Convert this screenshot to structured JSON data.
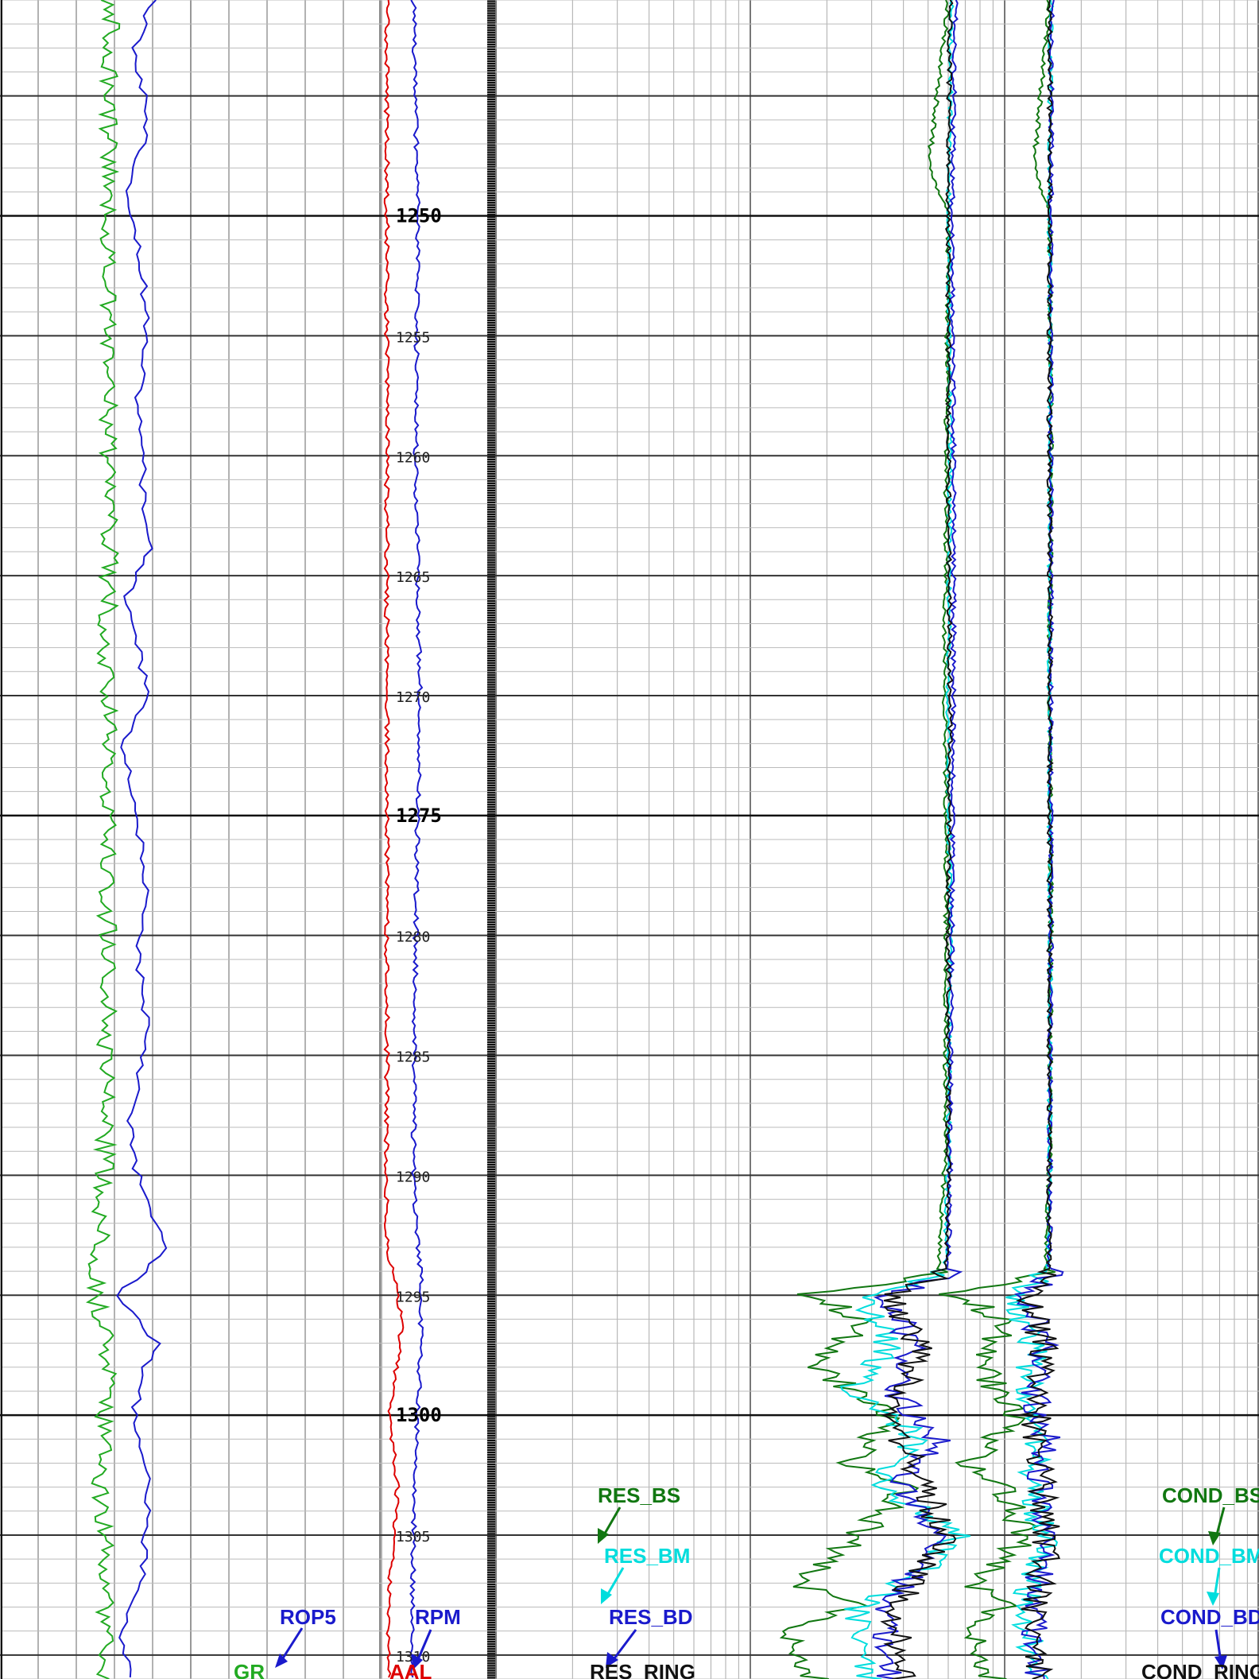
{
  "chart_data": {
    "type": "line",
    "title": "",
    "depth_range": [
      1241,
      1311
    ],
    "depth_ticks": [
      {
        "depth": 1250,
        "label": "1250",
        "major": true
      },
      {
        "depth": 1255,
        "label": "1255",
        "major": false
      },
      {
        "depth": 1260,
        "label": "1260",
        "major": false
      },
      {
        "depth": 1265,
        "label": "1265",
        "major": false
      },
      {
        "depth": 1270,
        "label": "1270",
        "major": false
      },
      {
        "depth": 1275,
        "label": "1275",
        "major": true
      },
      {
        "depth": 1280,
        "label": "1280",
        "major": false
      },
      {
        "depth": 1285,
        "label": "1285",
        "major": false
      },
      {
        "depth": 1290,
        "label": "1290",
        "major": false
      },
      {
        "depth": 1295,
        "label": "1295",
        "major": false
      },
      {
        "depth": 1300,
        "label": "1300",
        "major": true
      },
      {
        "depth": 1305,
        "label": "1305",
        "major": false
      },
      {
        "depth": 1310,
        "label": "1310",
        "major": false
      }
    ],
    "grid": true,
    "tracks": [
      {
        "name": "track-1",
        "scale": "linear",
        "series": [
          {
            "name": "GR",
            "color": "#22aa22",
            "depth": [
              1241,
              1245,
              1250,
              1255,
              1260,
              1265,
              1268,
              1270,
              1275,
              1280,
              1285,
              1290,
              1293,
              1295,
              1296,
              1298,
              1300,
              1303,
              1305,
              1308,
              1311
            ],
            "values": [
              0.58,
              0.57,
              0.56,
              0.57,
              0.57,
              0.57,
              0.56,
              0.57,
              0.57,
              0.56,
              0.56,
              0.55,
              0.52,
              0.49,
              0.54,
              0.56,
              0.55,
              0.52,
              0.54,
              0.56,
              0.53
            ]
          },
          {
            "name": "ROP5",
            "color": "#1a1acc",
            "depth": [
              1241,
              1243,
              1246,
              1249,
              1252,
              1255,
              1258,
              1261,
              1264,
              1266,
              1268,
              1270,
              1272,
              1275,
              1278,
              1281,
              1284,
              1286,
              1288,
              1290,
              1293,
              1294,
              1295,
              1297,
              1298,
              1300,
              1303,
              1305,
              1307,
              1309,
              1311
            ],
            "values": [
              0.8,
              0.7,
              0.78,
              0.68,
              0.74,
              0.78,
              0.72,
              0.75,
              0.78,
              0.66,
              0.72,
              0.78,
              0.64,
              0.72,
              0.76,
              0.72,
              0.78,
              0.73,
              0.68,
              0.72,
              0.86,
              0.76,
              0.6,
              0.82,
              0.76,
              0.7,
              0.78,
              0.76,
              0.74,
              0.64,
              0.68
            ]
          }
        ]
      },
      {
        "name": "track-2",
        "scale": "linear",
        "series": [
          {
            "name": "RPM",
            "color": "#1a1acc",
            "depth": [
              1241,
              1250,
              1260,
              1270,
              1280,
              1290,
              1295,
              1300,
              1305,
              1311
            ],
            "values": [
              0.3,
              0.34,
              0.32,
              0.36,
              0.32,
              0.3,
              0.38,
              0.34,
              0.3,
              0.28
            ]
          },
          {
            "name": "AAL",
            "color": "#dd0000",
            "depth": [
              1241,
              1252,
              1270,
              1293,
              1294,
              1296,
              1300,
              1303,
              1308,
              1311
            ],
            "values": [
              0.05,
              0.05,
              0.05,
              0.05,
              0.1,
              0.2,
              0.08,
              0.15,
              0.06,
              0.08
            ]
          }
        ]
      },
      {
        "name": "track-3",
        "scale": "log",
        "series": [
          {
            "name": "RES_BS",
            "color": "#117711",
            "depth": [
              1241,
              1248,
              1250,
              1260,
              1270,
              1280,
              1290,
              1294,
              1295,
              1296,
              1298,
              1300,
              1302,
              1303,
              1305,
              1307,
              1308,
              1309,
              1311
            ],
            "values": [
              6.0,
              5.0,
              6.0,
              5.9,
              5.8,
              5.9,
              5.8,
              5.5,
              1.6,
              2.8,
              1.7,
              3.5,
              2.4,
              4.2,
              2.6,
              1.5,
              2.6,
              1.3,
              1.8
            ]
          },
          {
            "name": "RES_BM",
            "color": "#00dddd",
            "depth": [
              1241,
              1250,
              1260,
              1270,
              1280,
              1290,
              1294,
              1295,
              1297,
              1299,
              1301,
              1303,
              1305,
              1308,
              1311
            ],
            "values": [
              6.2,
              6.0,
              6.1,
              6.0,
              6.1,
              6.0,
              5.8,
              2.8,
              3.5,
              2.4,
              4.6,
              3.0,
              6.6,
              2.6,
              2.9
            ]
          },
          {
            "name": "RES_BD",
            "color": "#1a1acc",
            "depth": [
              1241,
              1250,
              1260,
              1270,
              1280,
              1290,
              1294,
              1295,
              1297,
              1299,
              1301,
              1303,
              1305,
              1308,
              1311
            ],
            "values": [
              6.4,
              6.2,
              6.3,
              6.3,
              6.2,
              6.1,
              6.0,
              3.5,
              4.3,
              3.6,
              5.5,
              3.8,
              5.6,
              3.3,
              3.6
            ]
          },
          {
            "name": "RES_RING",
            "color": "#111111",
            "depth": [
              1241,
              1250,
              1260,
              1270,
              1280,
              1290,
              1294,
              1295,
              1297,
              1300,
              1303,
              1305,
              1308,
              1311
            ],
            "values": [
              6.1,
              6.0,
              6.0,
              6.1,
              6.0,
              6.0,
              5.9,
              3.6,
              4.6,
              3.6,
              4.8,
              5.8,
              3.7,
              3.9
            ]
          }
        ]
      },
      {
        "name": "track-4",
        "scale": "log",
        "series": [
          {
            "name": "COND_BS",
            "color": "#117711",
            "depth": [
              1241,
              1248,
              1250,
              1260,
              1270,
              1280,
              1290,
              1294,
              1295,
              1296,
              1298,
              1300,
              1302,
              1303,
              1305,
              1307,
              1308,
              1309,
              1311
            ],
            "values": [
              150,
              130,
              150,
              152,
              150,
              152,
              150,
              145,
              60,
              100,
              80,
              110,
              70,
              100,
              120,
              75,
              100,
              70,
              90
            ]
          },
          {
            "name": "COND_BM",
            "color": "#00dddd",
            "depth": [
              1241,
              1250,
              1260,
              1270,
              1280,
              1290,
              1294,
              1295,
              1297,
              1299,
              1301,
              1303,
              1305,
              1308,
              1311
            ],
            "values": [
              152,
              150,
              151,
              150,
              151,
              150,
              148,
              110,
              130,
              120,
              140,
              125,
              145,
              120,
              130
            ]
          },
          {
            "name": "COND_BD",
            "color": "#1a1acc",
            "depth": [
              1241,
              1250,
              1260,
              1270,
              1280,
              1290,
              1294,
              1295,
              1297,
              1299,
              1301,
              1303,
              1305,
              1308,
              1311
            ],
            "values": [
              153,
              152,
              152,
              152,
              152,
              151,
              150,
              125,
              140,
              130,
              148,
              135,
              150,
              128,
              138
            ]
          },
          {
            "name": "COND_RING",
            "color": "#111111",
            "depth": [
              1241,
              1250,
              1260,
              1270,
              1280,
              1290,
              1294,
              1295,
              1297,
              1300,
              1303,
              1305,
              1308,
              1311
            ],
            "values": [
              151,
              150,
              150,
              151,
              150,
              150,
              149,
              128,
              140,
              132,
              142,
              148,
              130,
              135
            ]
          }
        ]
      }
    ],
    "labels": {
      "gr": "GR",
      "rop5": "ROP5",
      "rpm": "RPM",
      "aal": "AAL",
      "res_bs": "RES_BS",
      "res_bm": "RES_BM",
      "res_bd": "RES_BD",
      "res_ring": "RES_RING",
      "cond_bs": "COND_BS",
      "cond_bm": "COND_BM",
      "cond_bd": "COND_BD",
      "cond_ring": "COND_RING"
    },
    "colors": {
      "green": "#22aa22",
      "dark_green": "#117711",
      "blue": "#1a1acc",
      "cyan": "#00dddd",
      "red": "#dd0000",
      "black": "#111111"
    }
  }
}
